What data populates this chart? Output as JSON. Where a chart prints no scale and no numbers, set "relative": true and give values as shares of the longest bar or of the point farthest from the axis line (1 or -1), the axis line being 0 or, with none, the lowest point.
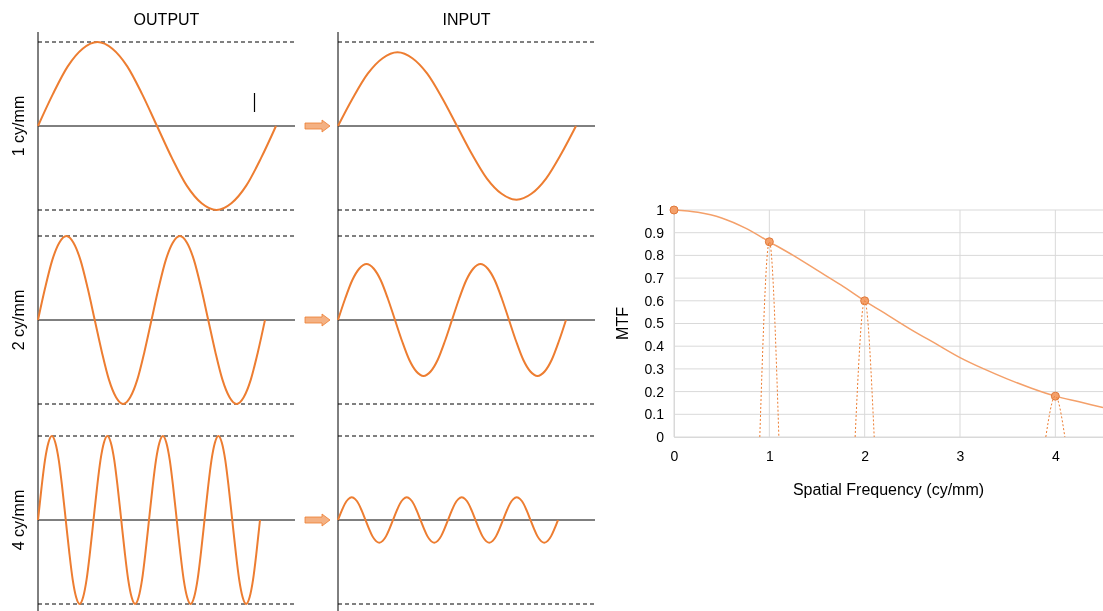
{
  "chart_data": [
    {
      "type": "line",
      "title": "OUTPUT",
      "ylabel": "1 cy/mm",
      "relative": true,
      "categories": [
        null,
        null,
        null,
        null,
        null,
        null,
        null,
        null,
        null,
        null,
        null,
        null,
        null,
        null,
        null,
        null,
        null
      ],
      "series": [
        {
          "color": "#ed7d31",
          "values": [
            0,
            0.38,
            0.71,
            0.92,
            1,
            0.92,
            0.71,
            0.38,
            0,
            -0.38,
            -0.71,
            -0.92,
            -1,
            -0.92,
            -0.71,
            -0.38,
            0
          ]
        }
      ],
      "ref_lines": [
        {
          "axis": "y",
          "value": 1,
          "line_style": "dashed",
          "color": "#000000"
        },
        {
          "axis": "y",
          "value": -1,
          "line_style": "dashed",
          "color": "#000000"
        }
      ]
    },
    {
      "type": "line",
      "title": "INPUT",
      "relative": true,
      "categories": [
        null,
        null,
        null,
        null,
        null,
        null,
        null,
        null,
        null,
        null,
        null,
        null,
        null,
        null,
        null,
        null,
        null
      ],
      "series": [
        {
          "color": "#ed7d31",
          "values": [
            0,
            0.38,
            0.71,
            0.92,
            1,
            0.92,
            0.71,
            0.38,
            0,
            -0.38,
            -0.71,
            -0.92,
            -1,
            -0.92,
            -0.71,
            -0.38,
            0
          ]
        }
      ],
      "ref_lines": [
        {
          "axis": "y",
          "value": 1.14,
          "line_style": "dashed",
          "color": "#000000"
        },
        {
          "axis": "y",
          "value": -1.14,
          "line_style": "dashed",
          "color": "#000000"
        }
      ]
    },
    {
      "type": "line",
      "ylabel": "2 cy/mm",
      "relative": true,
      "categories": [
        null,
        null,
        null,
        null,
        null,
        null,
        null,
        null,
        null,
        null,
        null,
        null,
        null,
        null,
        null,
        null,
        null,
        null,
        null,
        null,
        null,
        null,
        null,
        null,
        null,
        null,
        null,
        null,
        null,
        null,
        null,
        null,
        null
      ],
      "series": [
        {
          "color": "#ed7d31",
          "values": [
            0,
            0.38,
            0.71,
            0.92,
            1,
            0.92,
            0.71,
            0.38,
            0,
            -0.38,
            -0.71,
            -0.92,
            -1,
            -0.92,
            -0.71,
            -0.38,
            0,
            0.38,
            0.71,
            0.92,
            1,
            0.92,
            0.71,
            0.38,
            0,
            -0.38,
            -0.71,
            -0.92,
            -1,
            -0.92,
            -0.71,
            -0.38,
            0
          ]
        }
      ],
      "ref_lines": [
        {
          "axis": "y",
          "value": 1,
          "line_style": "dashed",
          "color": "#000000"
        },
        {
          "axis": "y",
          "value": -1,
          "line_style": "dashed",
          "color": "#000000"
        }
      ]
    },
    {
      "type": "line",
      "relative": true,
      "categories": [
        null,
        null,
        null,
        null,
        null,
        null,
        null,
        null,
        null,
        null,
        null,
        null,
        null,
        null,
        null,
        null,
        null,
        null,
        null,
        null,
        null,
        null,
        null,
        null,
        null,
        null,
        null,
        null,
        null,
        null,
        null,
        null,
        null
      ],
      "series": [
        {
          "color": "#ed7d31",
          "values": [
            0,
            0.38,
            0.71,
            0.92,
            1,
            0.92,
            0.71,
            0.38,
            0,
            -0.38,
            -0.71,
            -0.92,
            -1,
            -0.92,
            -0.71,
            -0.38,
            0,
            0.38,
            0.71,
            0.92,
            1,
            0.92,
            0.71,
            0.38,
            0,
            -0.38,
            -0.71,
            -0.92,
            -1,
            -0.92,
            -0.71,
            -0.38,
            0
          ]
        }
      ],
      "ref_lines": [
        {
          "axis": "y",
          "value": 1.5,
          "line_style": "dashed",
          "color": "#000000"
        },
        {
          "axis": "y",
          "value": -1.5,
          "line_style": "dashed",
          "color": "#000000"
        }
      ]
    },
    {
      "type": "line",
      "ylabel": "4 cy/mm",
      "relative": true,
      "categories": [
        null,
        null,
        null,
        null,
        null,
        null,
        null,
        null,
        null,
        null,
        null,
        null,
        null,
        null,
        null,
        null,
        null,
        null,
        null,
        null,
        null,
        null,
        null,
        null,
        null,
        null,
        null,
        null,
        null,
        null,
        null,
        null,
        null,
        null,
        null,
        null,
        null,
        null,
        null,
        null,
        null,
        null,
        null,
        null,
        null,
        null,
        null,
        null,
        null,
        null,
        null,
        null,
        null,
        null,
        null,
        null,
        null,
        null,
        null,
        null,
        null,
        null,
        null,
        null,
        null
      ],
      "series": [
        {
          "color": "#ed7d31",
          "values": [
            0,
            0.38,
            0.71,
            0.92,
            1,
            0.92,
            0.71,
            0.38,
            0,
            -0.38,
            -0.71,
            -0.92,
            -1,
            -0.92,
            -0.71,
            -0.38,
            0,
            0.38,
            0.71,
            0.92,
            1,
            0.92,
            0.71,
            0.38,
            0,
            -0.38,
            -0.71,
            -0.92,
            -1,
            -0.92,
            -0.71,
            -0.38,
            0,
            0.38,
            0.71,
            0.92,
            1,
            0.92,
            0.71,
            0.38,
            0,
            -0.38,
            -0.71,
            -0.92,
            -1,
            -0.92,
            -0.71,
            -0.38,
            0,
            0.38,
            0.71,
            0.92,
            1,
            0.92,
            0.71,
            0.38,
            0,
            -0.38,
            -0.71,
            -0.92,
            -1,
            -0.92,
            -0.71,
            -0.38,
            0
          ]
        }
      ],
      "ref_lines": [
        {
          "axis": "y",
          "value": 1,
          "line_style": "dashed",
          "color": "#000000"
        },
        {
          "axis": "y",
          "value": -1,
          "line_style": "dashed",
          "color": "#000000"
        }
      ]
    },
    {
      "type": "line",
      "relative": true,
      "categories": [
        null,
        null,
        null,
        null,
        null,
        null,
        null,
        null,
        null,
        null,
        null,
        null,
        null,
        null,
        null,
        null,
        null,
        null,
        null,
        null,
        null,
        null,
        null,
        null,
        null,
        null,
        null,
        null,
        null,
        null,
        null,
        null,
        null,
        null,
        null,
        null,
        null,
        null,
        null,
        null,
        null,
        null,
        null,
        null,
        null,
        null,
        null,
        null,
        null,
        null,
        null,
        null,
        null,
        null,
        null,
        null,
        null,
        null,
        null,
        null,
        null,
        null,
        null,
        null,
        null
      ],
      "series": [
        {
          "color": "#ed7d31",
          "values": [
            0,
            0.38,
            0.71,
            0.92,
            1,
            0.92,
            0.71,
            0.38,
            0,
            -0.38,
            -0.71,
            -0.92,
            -1,
            -0.92,
            -0.71,
            -0.38,
            0,
            0.38,
            0.71,
            0.92,
            1,
            0.92,
            0.71,
            0.38,
            0,
            -0.38,
            -0.71,
            -0.92,
            -1,
            -0.92,
            -0.71,
            -0.38,
            0,
            0.38,
            0.71,
            0.92,
            1,
            0.92,
            0.71,
            0.38,
            0,
            -0.38,
            -0.71,
            -0.92,
            -1,
            -0.92,
            -0.71,
            -0.38,
            0,
            0.38,
            0.71,
            0.92,
            1,
            0.92,
            0.71,
            0.38,
            0,
            -0.38,
            -0.71,
            -0.92,
            -1,
            -0.92,
            -0.71,
            -0.38,
            0
          ]
        }
      ],
      "ref_lines": [
        {
          "axis": "y",
          "value": 3.7,
          "line_style": "dashed",
          "color": "#000000"
        },
        {
          "axis": "y",
          "value": -3.7,
          "line_style": "dashed",
          "color": "#000000"
        }
      ]
    },
    {
      "type": "line",
      "xlabel": "Spatial Frequency (cy/mm)",
      "ylabel": "MTF",
      "xlim": [
        0,
        4.5
      ],
      "xticks": [
        0,
        1,
        2,
        3,
        4
      ],
      "ylim": [
        0,
        1
      ],
      "yticks": [
        0,
        0.1,
        0.2,
        0.3,
        0.4,
        0.5,
        0.6,
        0.7,
        0.8,
        0.9,
        1
      ],
      "grid": true,
      "series": [
        {
          "type": "line",
          "color": "#f4a06a",
          "marker": "none",
          "x": [
            0,
            0.25,
            0.5,
            0.75,
            1,
            1.25,
            1.5,
            1.75,
            2,
            2.25,
            2.5,
            2.75,
            3,
            3.25,
            3.5,
            3.75,
            4,
            4.25,
            4.5
          ],
          "values": [
            1,
            0.99,
            0.965,
            0.92,
            0.86,
            0.8,
            0.735,
            0.67,
            0.6,
            0.535,
            0.47,
            0.41,
            0.35,
            0.3,
            0.255,
            0.215,
            0.18,
            0.155,
            0.13
          ]
        },
        {
          "type": "scatter",
          "color": "#f4a06a",
          "marker": "circle",
          "x": [
            0,
            1,
            2,
            4
          ],
          "values": [
            1,
            0.86,
            0.6,
            0.18
          ]
        },
        {
          "type": "line",
          "color": "#ed7d31",
          "line_style": "dotted",
          "marker": "none",
          "x": [
            0.9,
            1,
            1.1
          ],
          "values": [
            0,
            0.86,
            0
          ]
        },
        {
          "type": "line",
          "color": "#ed7d31",
          "line_style": "dotted",
          "marker": "none",
          "x": [
            1.9,
            2,
            2.1
          ],
          "values": [
            0,
            0.6,
            0
          ]
        },
        {
          "type": "line",
          "color": "#ed7d31",
          "line_style": "dotted",
          "marker": "none",
          "x": [
            3.9,
            4,
            4.1
          ],
          "values": [
            0,
            0.18,
            0
          ]
        }
      ]
    }
  ]
}
